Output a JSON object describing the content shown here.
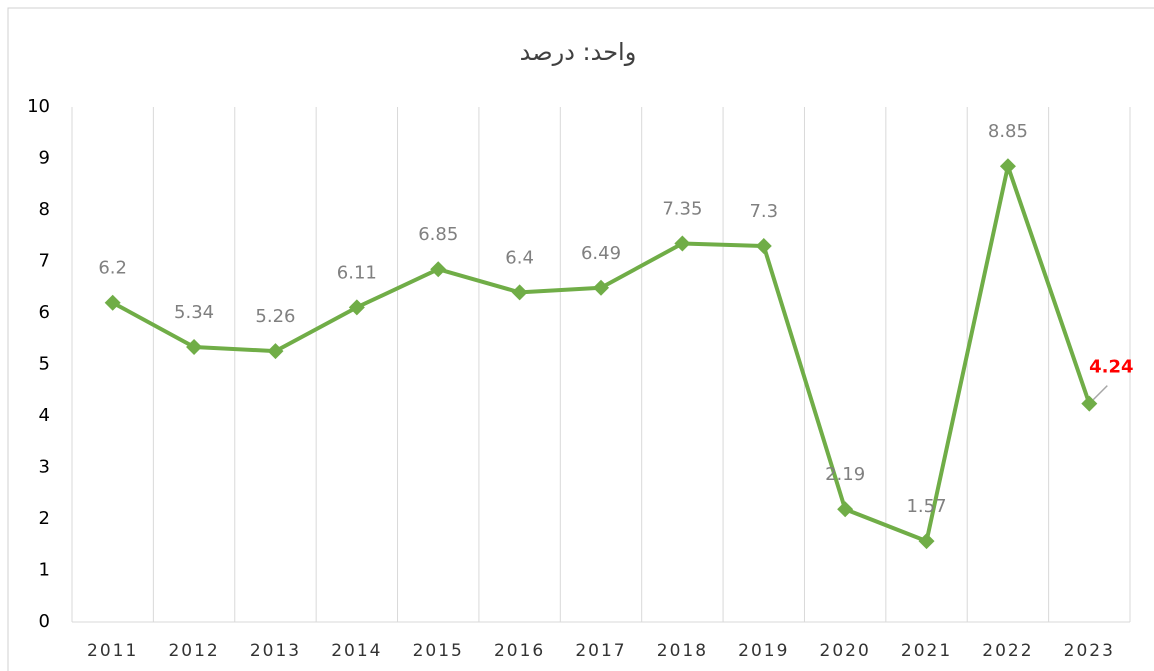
{
  "chart_data": {
    "type": "line",
    "title": "واحد: درصد",
    "categories": [
      "2011",
      "2012",
      "2013",
      "2014",
      "2015",
      "2016",
      "2017",
      "2018",
      "2019",
      "2020",
      "2021",
      "2022",
      "2023"
    ],
    "values": [
      6.2,
      5.34,
      5.26,
      6.11,
      6.85,
      6.4,
      6.49,
      7.35,
      7.3,
      2.19,
      1.57,
      8.85,
      4.24
    ],
    "color": "#70ad47",
    "label_color": "#808080",
    "highlight_label_color": "#ff0000",
    "ylim": [
      0,
      10
    ],
    "yticks": [
      0,
      1,
      2,
      3,
      4,
      5,
      6,
      7,
      8,
      9,
      10
    ],
    "grid": true
  }
}
